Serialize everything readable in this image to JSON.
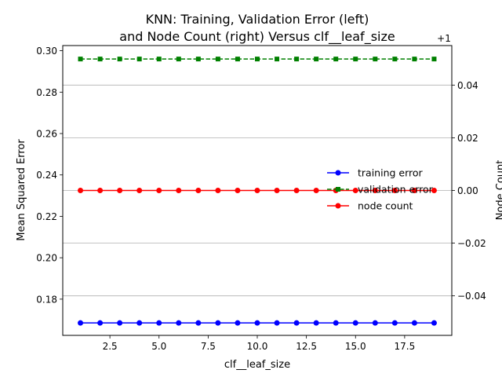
{
  "chart_data": {
    "type": "line",
    "title_line1": "KNN: Training, Validation Error (left)",
    "title_line2": "and Node Count (right) Versus clf__leaf_size",
    "xlabel": "clf__leaf_size",
    "ylabel_left": "Mean Squared Error",
    "ylabel_right": "Node Count",
    "x": [
      1,
      2,
      3,
      4,
      5,
      6,
      7,
      8,
      9,
      10,
      11,
      12,
      13,
      14,
      15,
      16,
      17,
      18,
      19
    ],
    "xlim": [
      0.1,
      19.9
    ],
    "xticks": [
      2.5,
      5.0,
      7.5,
      10.0,
      12.5,
      15.0,
      17.5
    ],
    "xtick_labels": [
      "2.5",
      "5.0",
      "7.5",
      "10.0",
      "12.5",
      "15.0",
      "17.5"
    ],
    "ylim_left": [
      0.1625,
      0.3025
    ],
    "yticks_left": [
      0.18,
      0.2,
      0.22,
      0.24,
      0.26,
      0.28,
      0.3
    ],
    "ytick_labels_left": [
      "0.18",
      "0.20",
      "0.22",
      "0.24",
      "0.26",
      "0.28",
      "0.30"
    ],
    "ylim_right": [
      0.945,
      1.055
    ],
    "yticks_right": [
      0.96,
      0.98,
      1.0,
      1.02,
      1.04
    ],
    "ytick_labels_right": [
      "−0.04",
      "−0.02",
      "0.00",
      "0.02",
      "0.04"
    ],
    "right_offset_label": "+1",
    "grid": "horizontal lines at right-axis ticks",
    "legend_position": "center-right",
    "series": [
      {
        "name": "training error",
        "axis": "left",
        "color": "#0000ff",
        "marker": "circle",
        "linestyle": "solid",
        "values": [
          0.1685,
          0.1685,
          0.1685,
          0.1685,
          0.1685,
          0.1685,
          0.1685,
          0.1685,
          0.1685,
          0.1685,
          0.1685,
          0.1685,
          0.1685,
          0.1685,
          0.1685,
          0.1685,
          0.1685,
          0.1685,
          0.1685
        ]
      },
      {
        "name": "validation error",
        "axis": "left",
        "color": "#008000",
        "marker": "square",
        "linestyle": "dashed",
        "values": [
          0.296,
          0.296,
          0.296,
          0.296,
          0.296,
          0.296,
          0.296,
          0.296,
          0.296,
          0.296,
          0.296,
          0.296,
          0.296,
          0.296,
          0.296,
          0.296,
          0.296,
          0.296,
          0.296
        ]
      },
      {
        "name": "node count",
        "axis": "right",
        "color": "#ff0000",
        "marker": "circle",
        "linestyle": "solid",
        "values": [
          1,
          1,
          1,
          1,
          1,
          1,
          1,
          1,
          1,
          1,
          1,
          1,
          1,
          1,
          1,
          1,
          1,
          1,
          1
        ]
      }
    ]
  }
}
